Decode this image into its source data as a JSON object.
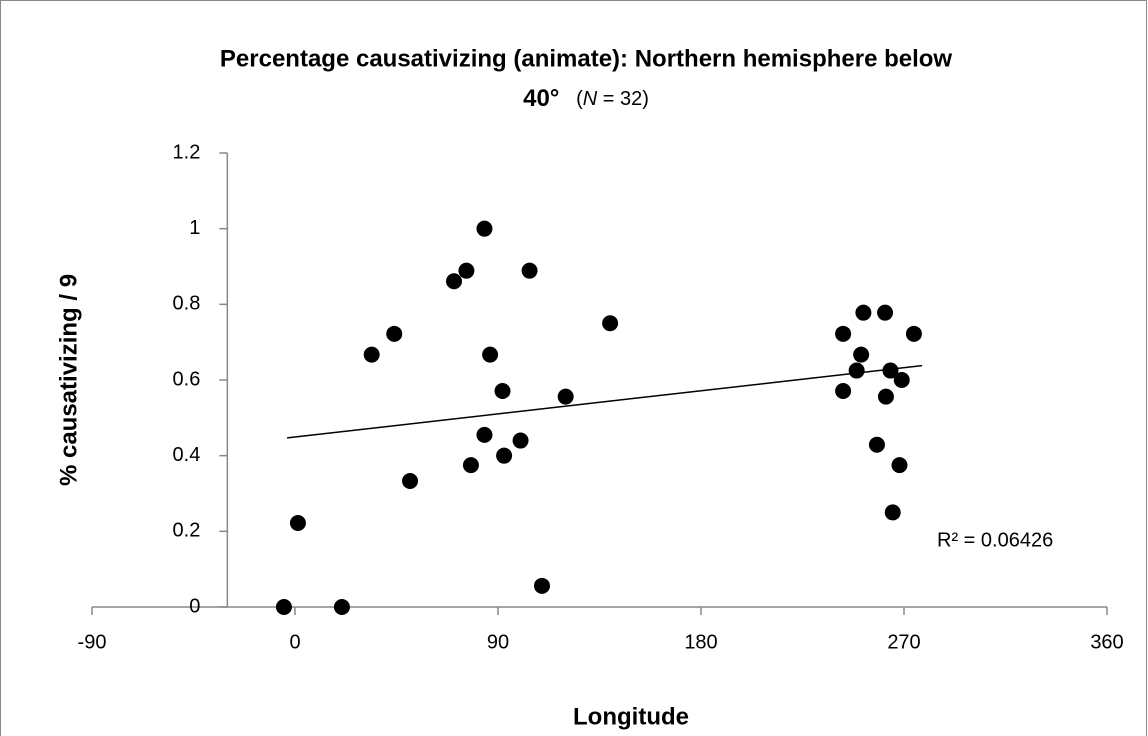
{
  "chart_data": {
    "type": "scatter",
    "title": [
      "Percentage causativizing (animate):   Northern hemisphere below",
      "40°"
    ],
    "title_suffix": [
      "(",
      "N",
      " = 32)"
    ],
    "xlabel": "Longitude",
    "ylabel": "% causativizing / 9",
    "x": [
      -4.9,
      1.3,
      20.8,
      34,
      44,
      51,
      70.5,
      76,
      78,
      84,
      84,
      86.5,
      92,
      92.7,
      100,
      104,
      109.5,
      120,
      139.7,
      243,
      243,
      249,
      251,
      252,
      258,
      261.6,
      262,
      264,
      265,
      268,
      269,
      274.4
    ],
    "values": [
      0,
      0.222,
      0,
      0.667,
      0.722,
      0.333,
      0.861,
      0.889,
      0.375,
      1,
      0.455,
      0.667,
      0.571,
      0.4,
      0.44,
      0.889,
      0.056,
      0.556,
      0.75,
      0.722,
      0.571,
      0.625,
      0.667,
      0.778,
      0.429,
      0.778,
      0.556,
      0.625,
      0.25,
      0.375,
      0.6,
      0.722
    ],
    "color": "#000000",
    "trendline": {
      "x": [
        -3.5,
        278
      ],
      "y": [
        0.447,
        0.638
      ]
    },
    "annotation": "R² = 0.06426",
    "xlim": [
      -90,
      360
    ],
    "xticks": [
      -90,
      0,
      90,
      180,
      270,
      360
    ],
    "ylim": [
      0,
      1.2
    ],
    "yticks": [
      0,
      0.2,
      0.4,
      0.6,
      0.8,
      1,
      1.2
    ],
    "y_axis_crosses_x": -30,
    "grid": false
  }
}
